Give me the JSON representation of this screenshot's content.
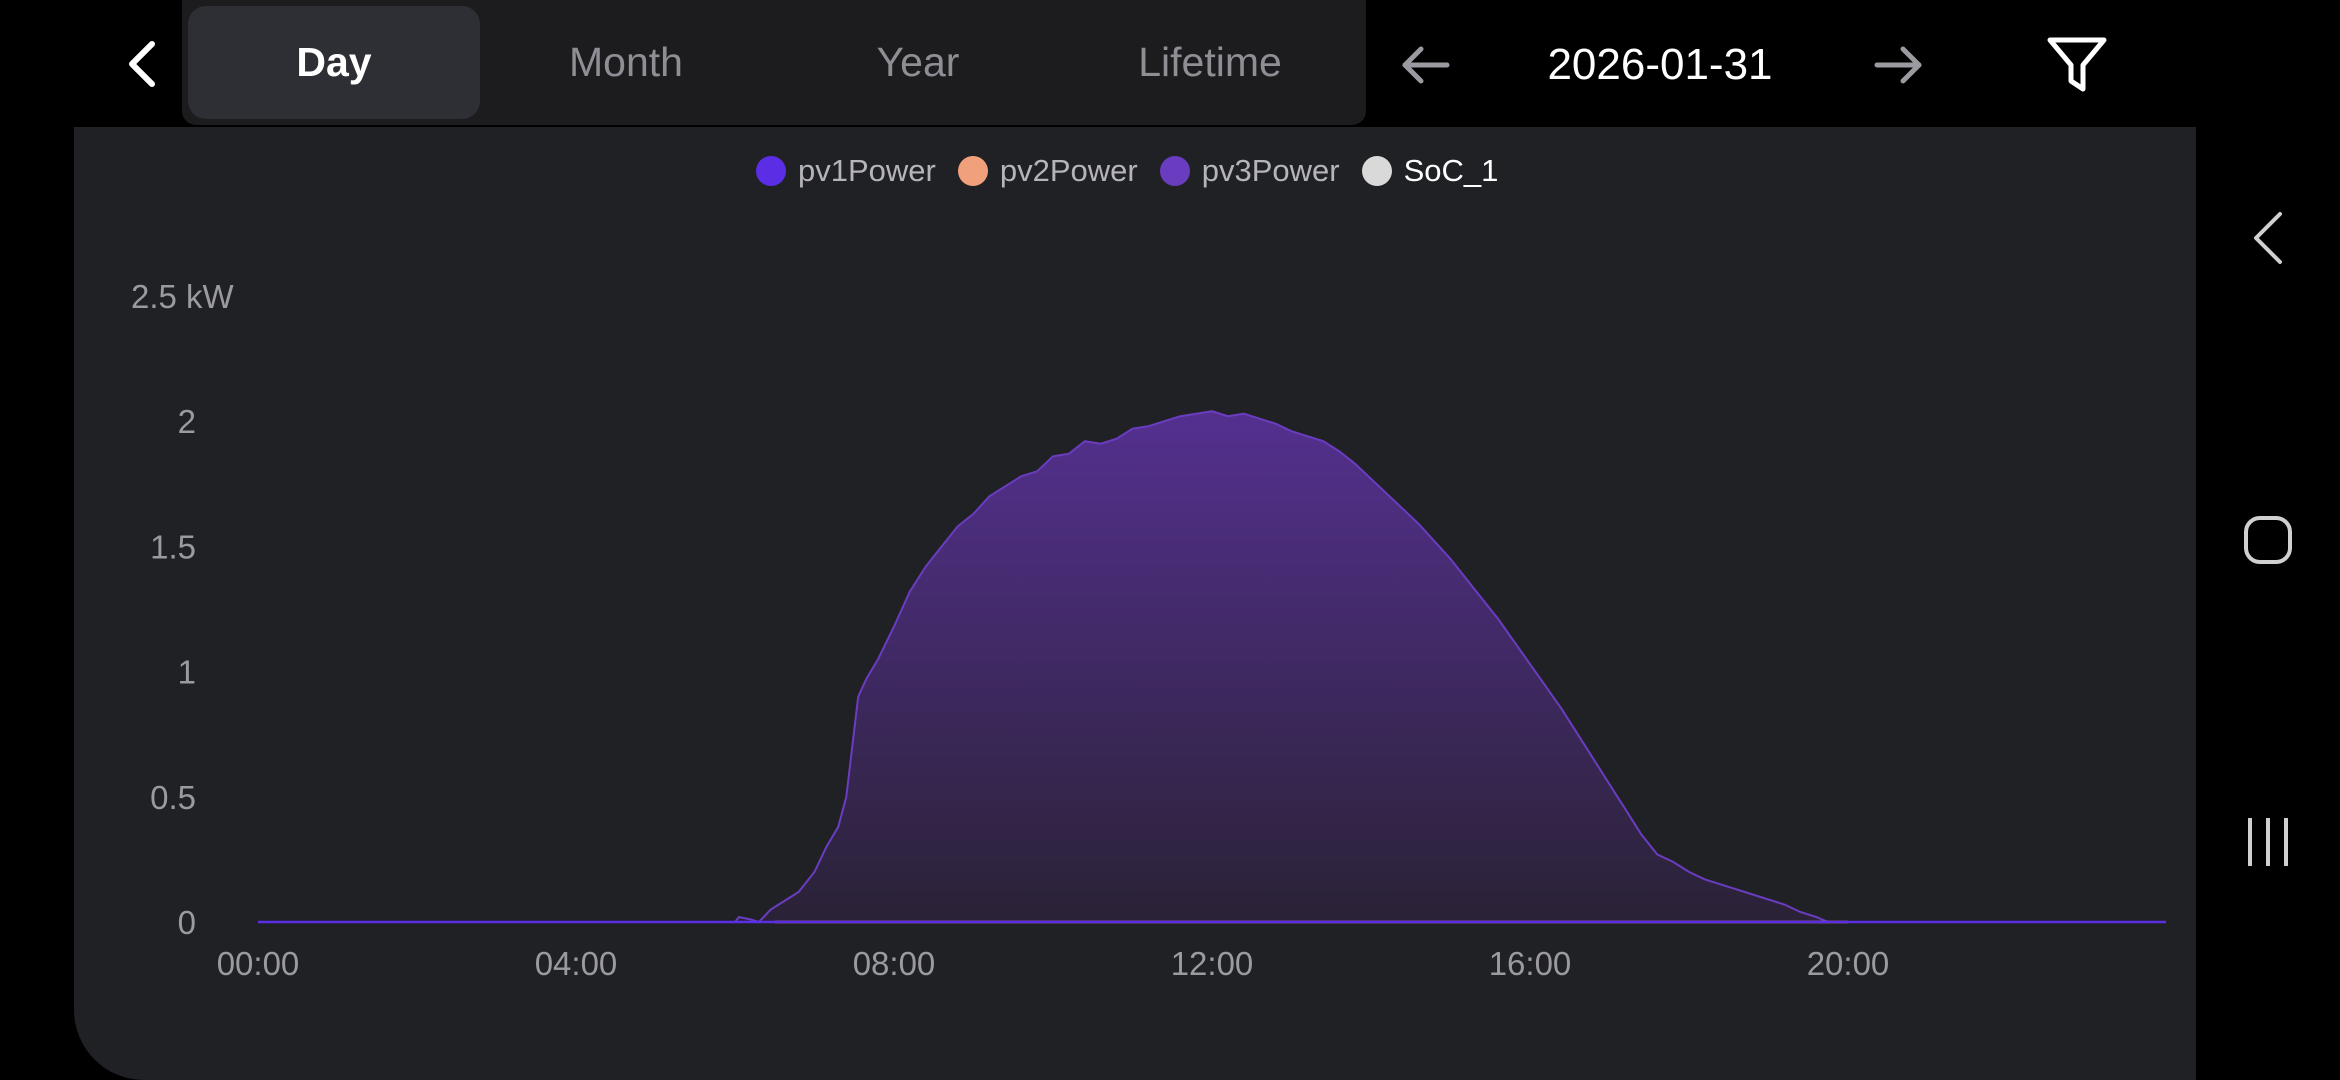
{
  "header": {
    "tabs": [
      {
        "label": "Day",
        "active": true
      },
      {
        "label": "Month",
        "active": false
      },
      {
        "label": "Year",
        "active": false
      },
      {
        "label": "Lifetime",
        "active": false
      }
    ],
    "date": "2026-01-31",
    "icons": [
      "back-chevron-icon",
      "arrow-left-icon",
      "arrow-right-icon",
      "filter-icon"
    ]
  },
  "legend": [
    {
      "label": "pv1Power",
      "color": "#5b2ee6"
    },
    {
      "label": "pv2Power",
      "color": "#f0a07a"
    },
    {
      "label": "pv3Power",
      "color": "#6a3cc0"
    },
    {
      "label": "SoC_1",
      "color": "#d9d9d9"
    }
  ],
  "chart_data": {
    "type": "area",
    "x_ticks": [
      "00:00",
      "04:00",
      "08:00",
      "12:00",
      "16:00",
      "20:00"
    ],
    "y_ticks": [
      "0",
      "0.5",
      "1",
      "1.5",
      "2",
      "2.5 kW"
    ],
    "ylim": [
      0,
      2.5
    ],
    "xlim_hours": [
      0,
      24
    ],
    "series": [
      {
        "name": "pv3Power",
        "color": "#6a3cc0",
        "fill_top": "#54308f",
        "fill_bottom": "#2a2236",
        "points": [
          [
            0,
            0
          ],
          [
            6.0,
            0
          ],
          [
            6.05,
            0.02
          ],
          [
            6.2,
            0.01
          ],
          [
            6.3,
            0
          ],
          [
            6.45,
            0.05
          ],
          [
            6.6,
            0.08
          ],
          [
            6.8,
            0.12
          ],
          [
            7.0,
            0.2
          ],
          [
            7.15,
            0.3
          ],
          [
            7.3,
            0.38
          ],
          [
            7.4,
            0.5
          ],
          [
            7.55,
            0.9
          ],
          [
            7.65,
            0.97
          ],
          [
            7.8,
            1.05
          ],
          [
            8.0,
            1.18
          ],
          [
            8.2,
            1.32
          ],
          [
            8.4,
            1.42
          ],
          [
            8.6,
            1.5
          ],
          [
            8.8,
            1.58
          ],
          [
            9.0,
            1.63
          ],
          [
            9.2,
            1.7
          ],
          [
            9.4,
            1.74
          ],
          [
            9.6,
            1.78
          ],
          [
            9.8,
            1.8
          ],
          [
            10.0,
            1.86
          ],
          [
            10.2,
            1.87
          ],
          [
            10.4,
            1.92
          ],
          [
            10.6,
            1.91
          ],
          [
            10.8,
            1.93
          ],
          [
            11.0,
            1.97
          ],
          [
            11.2,
            1.98
          ],
          [
            11.4,
            2.0
          ],
          [
            11.6,
            2.02
          ],
          [
            11.8,
            2.03
          ],
          [
            12.0,
            2.04
          ],
          [
            12.2,
            2.02
          ],
          [
            12.4,
            2.03
          ],
          [
            12.6,
            2.01
          ],
          [
            12.8,
            1.99
          ],
          [
            13.0,
            1.96
          ],
          [
            13.2,
            1.94
          ],
          [
            13.4,
            1.92
          ],
          [
            13.6,
            1.88
          ],
          [
            13.8,
            1.83
          ],
          [
            14.0,
            1.77
          ],
          [
            14.2,
            1.71
          ],
          [
            14.4,
            1.65
          ],
          [
            14.6,
            1.59
          ],
          [
            14.8,
            1.52
          ],
          [
            15.0,
            1.45
          ],
          [
            15.2,
            1.37
          ],
          [
            15.4,
            1.29
          ],
          [
            15.6,
            1.21
          ],
          [
            15.8,
            1.12
          ],
          [
            16.0,
            1.03
          ],
          [
            16.2,
            0.94
          ],
          [
            16.4,
            0.85
          ],
          [
            16.6,
            0.75
          ],
          [
            16.8,
            0.65
          ],
          [
            17.0,
            0.55
          ],
          [
            17.2,
            0.45
          ],
          [
            17.4,
            0.35
          ],
          [
            17.6,
            0.27
          ],
          [
            17.8,
            0.24
          ],
          [
            18.0,
            0.2
          ],
          [
            18.2,
            0.17
          ],
          [
            18.4,
            0.15
          ],
          [
            18.6,
            0.13
          ],
          [
            18.8,
            0.11
          ],
          [
            19.0,
            0.09
          ],
          [
            19.2,
            0.07
          ],
          [
            19.4,
            0.04
          ],
          [
            19.6,
            0.02
          ],
          [
            19.75,
            0
          ],
          [
            24,
            0
          ]
        ]
      },
      {
        "name": "pv2Power",
        "color": "#f0a07a",
        "points": [
          [
            6.5,
            0
          ],
          [
            20.0,
            0
          ]
        ]
      },
      {
        "name": "pv1Power",
        "color": "#5b2ee6",
        "points": [
          [
            0,
            0
          ],
          [
            24,
            0
          ]
        ]
      }
    ]
  }
}
